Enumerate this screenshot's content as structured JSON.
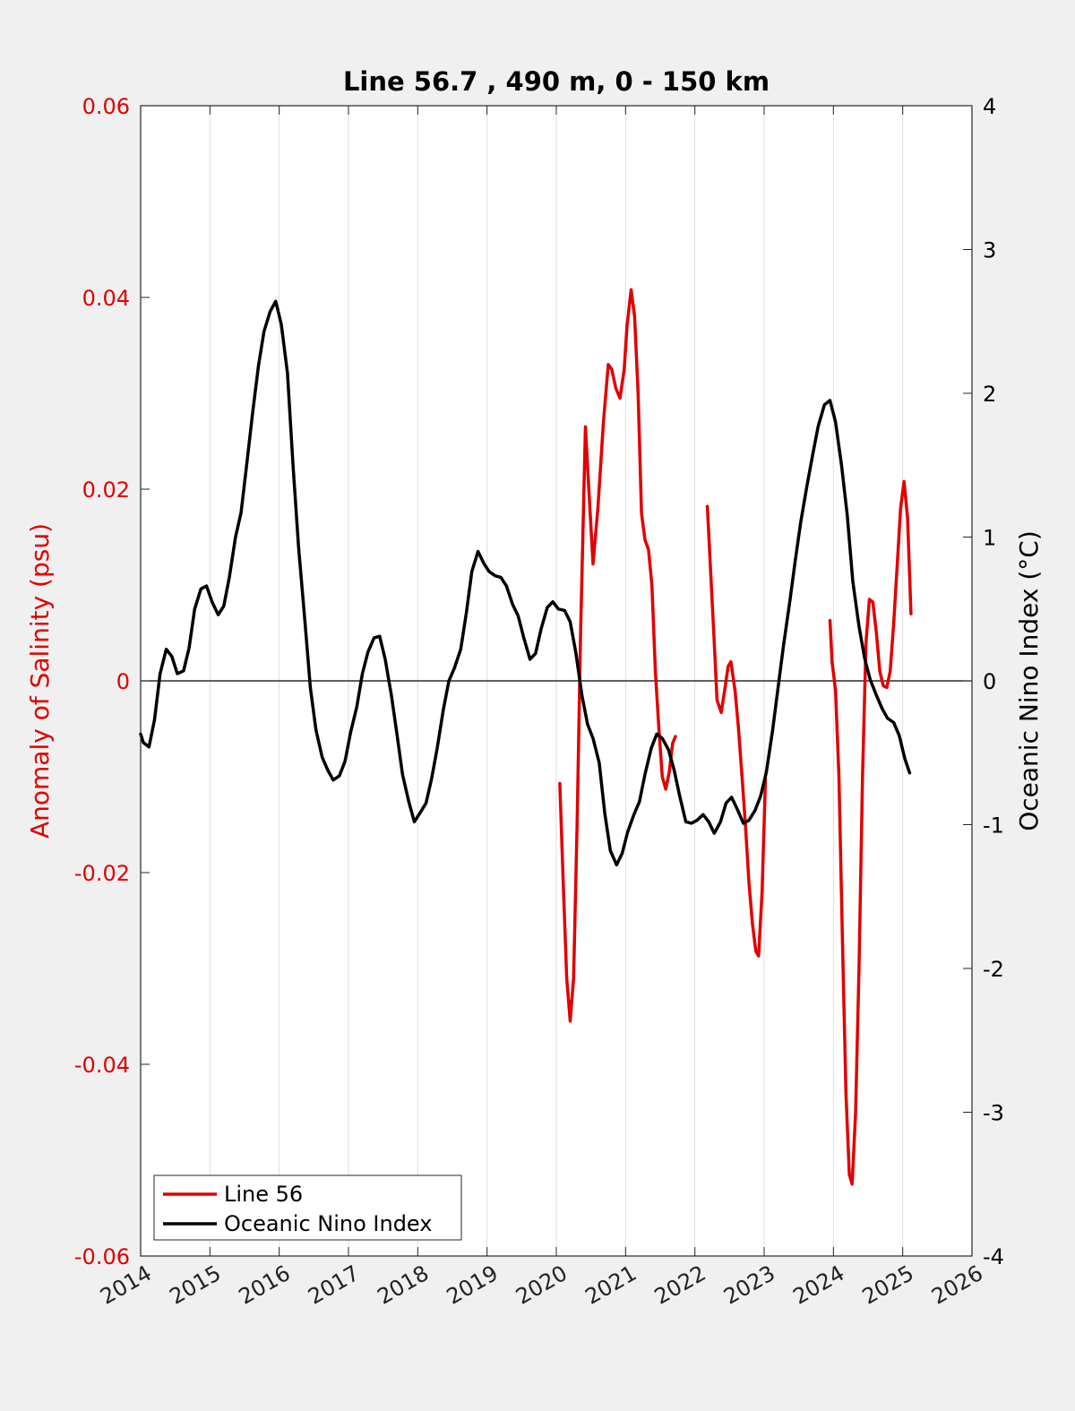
{
  "chart_data": {
    "type": "line",
    "title": "Line 56.7 , 490 m, 0 - 150 km",
    "xlim": [
      2014,
      2026
    ],
    "x_ticks": [
      "2014",
      "2015",
      "2016",
      "2017",
      "2018",
      "2019",
      "2020",
      "2021",
      "2022",
      "2023",
      "2024",
      "2025",
      "2026"
    ],
    "y_left": {
      "label": "Anomaly of Salinity (psu)",
      "lim": [
        -0.06,
        0.06
      ],
      "ticks": [
        "-0.06",
        "-0.04",
        "-0.02",
        "0",
        "0.02",
        "0.04",
        "0.06"
      ],
      "color": "#e00000"
    },
    "y_right": {
      "label": "Oceanic Nino Index (°C)",
      "lim": [
        -4,
        4
      ],
      "ticks": [
        "-4",
        "-3",
        "-2",
        "-1",
        "0",
        "1",
        "2",
        "3",
        "4"
      ],
      "color": "#000000"
    },
    "grid": "vertical",
    "zero_line": true,
    "legend": {
      "placement": "bottom-left",
      "entries": [
        "Line 56",
        "Oceanic Nino Index"
      ]
    },
    "series": [
      {
        "name": "Line 56",
        "axis": "left",
        "color": "#e00000",
        "segments": [
          [
            [
              2020.05,
              -0.0107
            ],
            [
              2020.1,
              -0.021
            ],
            [
              2020.15,
              -0.031
            ],
            [
              2020.2,
              -0.0355
            ],
            [
              2020.25,
              -0.031
            ],
            [
              2020.3,
              -0.015
            ],
            [
              2020.35,
              0.005
            ],
            [
              2020.42,
              0.0265
            ],
            [
              2020.47,
              0.02
            ],
            [
              2020.53,
              0.0122
            ],
            [
              2020.6,
              0.018
            ],
            [
              2020.68,
              0.027
            ],
            [
              2020.75,
              0.033
            ],
            [
              2020.8,
              0.0325
            ],
            [
              2020.86,
              0.0305
            ],
            [
              2020.92,
              0.0295
            ],
            [
              2020.98,
              0.0325
            ],
            [
              2021.02,
              0.037
            ],
            [
              2021.08,
              0.0408
            ],
            [
              2021.13,
              0.038
            ],
            [
              2021.18,
              0.03
            ],
            [
              2021.23,
              0.0175
            ],
            [
              2021.28,
              0.0147
            ],
            [
              2021.33,
              0.0137
            ],
            [
              2021.38,
              0.01
            ],
            [
              2021.43,
              0.001
            ],
            [
              2021.48,
              -0.005
            ],
            [
              2021.53,
              -0.01
            ],
            [
              2021.58,
              -0.0113
            ],
            [
              2021.63,
              -0.0095
            ],
            [
              2021.68,
              -0.0065
            ],
            [
              2021.72,
              -0.0058
            ]
          ],
          [
            [
              2022.18,
              0.0182
            ],
            [
              2022.23,
              0.011
            ],
            [
              2022.28,
              0.004
            ],
            [
              2022.32,
              -0.002
            ],
            [
              2022.38,
              -0.0033
            ],
            [
              2022.43,
              -0.001
            ],
            [
              2022.48,
              0.0015
            ],
            [
              2022.52,
              0.002
            ],
            [
              2022.58,
              -0.001
            ],
            [
              2022.63,
              -0.005
            ],
            [
              2022.68,
              -0.01
            ],
            [
              2022.73,
              -0.015
            ],
            [
              2022.78,
              -0.021
            ],
            [
              2022.83,
              -0.0253
            ],
            [
              2022.88,
              -0.0282
            ],
            [
              2022.92,
              -0.0287
            ],
            [
              2022.97,
              -0.022
            ],
            [
              2023.02,
              -0.0102
            ]
          ],
          [
            [
              2023.95,
              0.0063
            ],
            [
              2023.98,
              0.002
            ],
            [
              2024.03,
              -0.001
            ],
            [
              2024.08,
              -0.01
            ],
            [
              2024.13,
              -0.027
            ],
            [
              2024.18,
              -0.043
            ],
            [
              2024.23,
              -0.0515
            ],
            [
              2024.27,
              -0.0525
            ],
            [
              2024.32,
              -0.045
            ],
            [
              2024.37,
              -0.03
            ],
            [
              2024.42,
              -0.01
            ],
            [
              2024.47,
              0.004
            ],
            [
              2024.52,
              0.0085
            ],
            [
              2024.57,
              0.0082
            ],
            [
              2024.62,
              0.005
            ],
            [
              2024.67,
              0.001
            ],
            [
              2024.72,
              -0.0005
            ],
            [
              2024.77,
              -0.0007
            ],
            [
              2024.82,
              0.001
            ],
            [
              2024.87,
              0.006
            ],
            [
              2024.92,
              0.012
            ],
            [
              2024.97,
              0.018
            ],
            [
              2025.02,
              0.0208
            ],
            [
              2025.07,
              0.017
            ],
            [
              2025.12,
              0.007
            ]
          ]
        ]
      },
      {
        "name": "Oceanic Nino Index",
        "axis": "right",
        "color": "#000000",
        "points": [
          [
            2014.0,
            -0.37
          ],
          [
            2014.04,
            -0.43
          ],
          [
            2014.12,
            -0.46
          ],
          [
            2014.2,
            -0.27
          ],
          [
            2014.28,
            0.05
          ],
          [
            2014.37,
            0.22
          ],
          [
            2014.45,
            0.17
          ],
          [
            2014.53,
            0.05
          ],
          [
            2014.62,
            0.07
          ],
          [
            2014.7,
            0.23
          ],
          [
            2014.78,
            0.5
          ],
          [
            2014.87,
            0.64
          ],
          [
            2014.95,
            0.66
          ],
          [
            2015.03,
            0.55
          ],
          [
            2015.12,
            0.46
          ],
          [
            2015.2,
            0.52
          ],
          [
            2015.28,
            0.72
          ],
          [
            2015.37,
            1.0
          ],
          [
            2015.45,
            1.17
          ],
          [
            2015.53,
            1.5
          ],
          [
            2015.62,
            1.88
          ],
          [
            2015.7,
            2.19
          ],
          [
            2015.78,
            2.43
          ],
          [
            2015.87,
            2.57
          ],
          [
            2015.95,
            2.64
          ],
          [
            2016.03,
            2.48
          ],
          [
            2016.12,
            2.14
          ],
          [
            2016.2,
            1.5
          ],
          [
            2016.28,
            0.93
          ],
          [
            2016.37,
            0.42
          ],
          [
            2016.45,
            -0.05
          ],
          [
            2016.53,
            -0.34
          ],
          [
            2016.62,
            -0.53
          ],
          [
            2016.7,
            -0.62
          ],
          [
            2016.78,
            -0.69
          ],
          [
            2016.87,
            -0.66
          ],
          [
            2016.95,
            -0.56
          ],
          [
            2017.03,
            -0.36
          ],
          [
            2017.12,
            -0.18
          ],
          [
            2017.2,
            0.05
          ],
          [
            2017.28,
            0.2
          ],
          [
            2017.37,
            0.3
          ],
          [
            2017.45,
            0.31
          ],
          [
            2017.53,
            0.15
          ],
          [
            2017.62,
            -0.1
          ],
          [
            2017.7,
            -0.37
          ],
          [
            2017.78,
            -0.65
          ],
          [
            2017.87,
            -0.84
          ],
          [
            2017.95,
            -0.98
          ],
          [
            2018.03,
            -0.92
          ],
          [
            2018.12,
            -0.85
          ],
          [
            2018.2,
            -0.68
          ],
          [
            2018.28,
            -0.47
          ],
          [
            2018.37,
            -0.2
          ],
          [
            2018.45,
            0.0
          ],
          [
            2018.53,
            0.09
          ],
          [
            2018.62,
            0.22
          ],
          [
            2018.7,
            0.47
          ],
          [
            2018.78,
            0.76
          ],
          [
            2018.87,
            0.9
          ],
          [
            2018.95,
            0.82
          ],
          [
            2019.03,
            0.76
          ],
          [
            2019.12,
            0.73
          ],
          [
            2019.2,
            0.72
          ],
          [
            2019.28,
            0.66
          ],
          [
            2019.37,
            0.53
          ],
          [
            2019.45,
            0.45
          ],
          [
            2019.53,
            0.3
          ],
          [
            2019.62,
            0.15
          ],
          [
            2019.7,
            0.19
          ],
          [
            2019.78,
            0.36
          ],
          [
            2019.87,
            0.51
          ],
          [
            2019.95,
            0.55
          ],
          [
            2020.03,
            0.5
          ],
          [
            2020.12,
            0.49
          ],
          [
            2020.2,
            0.41
          ],
          [
            2020.28,
            0.2
          ],
          [
            2020.37,
            -0.1
          ],
          [
            2020.45,
            -0.3
          ],
          [
            2020.53,
            -0.4
          ],
          [
            2020.62,
            -0.57
          ],
          [
            2020.7,
            -0.92
          ],
          [
            2020.78,
            -1.18
          ],
          [
            2020.87,
            -1.28
          ],
          [
            2020.95,
            -1.2
          ],
          [
            2021.03,
            -1.05
          ],
          [
            2021.12,
            -0.93
          ],
          [
            2021.2,
            -0.84
          ],
          [
            2021.28,
            -0.65
          ],
          [
            2021.37,
            -0.47
          ],
          [
            2021.45,
            -0.37
          ],
          [
            2021.53,
            -0.4
          ],
          [
            2021.62,
            -0.48
          ],
          [
            2021.7,
            -0.62
          ],
          [
            2021.78,
            -0.8
          ],
          [
            2021.87,
            -0.98
          ],
          [
            2021.95,
            -0.99
          ],
          [
            2022.03,
            -0.97
          ],
          [
            2022.12,
            -0.93
          ],
          [
            2022.2,
            -0.98
          ],
          [
            2022.28,
            -1.06
          ],
          [
            2022.37,
            -0.98
          ],
          [
            2022.45,
            -0.85
          ],
          [
            2022.53,
            -0.81
          ],
          [
            2022.62,
            -0.9
          ],
          [
            2022.7,
            -0.99
          ],
          [
            2022.78,
            -0.97
          ],
          [
            2022.87,
            -0.9
          ],
          [
            2022.95,
            -0.8
          ],
          [
            2023.03,
            -0.64
          ],
          [
            2023.12,
            -0.35
          ],
          [
            2023.2,
            -0.05
          ],
          [
            2023.28,
            0.25
          ],
          [
            2023.37,
            0.55
          ],
          [
            2023.45,
            0.84
          ],
          [
            2023.53,
            1.11
          ],
          [
            2023.62,
            1.36
          ],
          [
            2023.7,
            1.57
          ],
          [
            2023.78,
            1.77
          ],
          [
            2023.87,
            1.92
          ],
          [
            2023.95,
            1.95
          ],
          [
            2024.03,
            1.8
          ],
          [
            2024.12,
            1.49
          ],
          [
            2024.2,
            1.15
          ],
          [
            2024.28,
            0.69
          ],
          [
            2024.37,
            0.38
          ],
          [
            2024.45,
            0.16
          ],
          [
            2024.53,
            0.01
          ],
          [
            2024.62,
            -0.1
          ],
          [
            2024.7,
            -0.19
          ],
          [
            2024.78,
            -0.26
          ],
          [
            2024.87,
            -0.29
          ],
          [
            2024.95,
            -0.38
          ],
          [
            2025.03,
            -0.54
          ],
          [
            2025.1,
            -0.64
          ]
        ]
      }
    ]
  }
}
